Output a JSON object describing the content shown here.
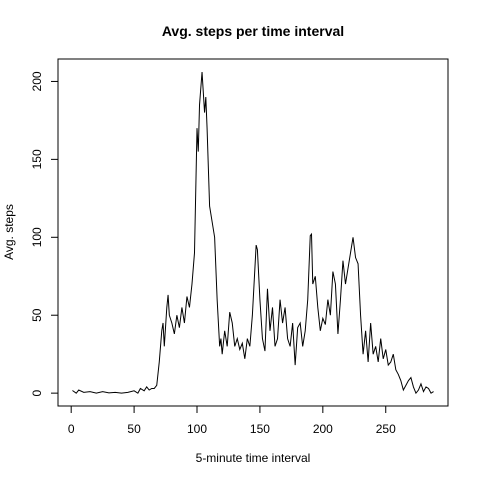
{
  "chart_data": {
    "type": "line",
    "title": "Avg. steps per time interval",
    "x_label": "5-minute time interval",
    "y_label": "Avg. steps",
    "color": "#000000",
    "x": [
      1,
      4,
      6,
      10,
      15,
      20,
      25,
      30,
      35,
      40,
      45,
      50,
      53,
      55,
      58,
      60,
      62,
      64,
      66,
      68,
      70,
      72,
      73,
      74,
      76,
      77,
      78,
      80,
      82,
      84,
      86,
      88,
      90,
      92,
      94,
      96,
      98,
      99,
      100,
      101,
      102,
      104,
      106,
      107,
      108,
      110,
      112,
      114,
      116,
      118,
      119,
      120,
      122,
      124,
      126,
      128,
      130,
      132,
      134,
      136,
      138,
      140,
      142,
      144,
      146,
      147,
      148,
      150,
      152,
      154,
      156,
      158,
      160,
      162,
      164,
      166,
      168,
      170,
      172,
      174,
      176,
      178,
      180,
      182,
      184,
      186,
      188,
      190,
      191,
      192,
      194,
      196,
      198,
      200,
      202,
      204,
      206,
      208,
      210,
      212,
      214,
      216,
      218,
      220,
      222,
      224,
      226,
      228,
      230,
      232,
      234,
      236,
      238,
      240,
      242,
      244,
      246,
      248,
      250,
      252,
      254,
      256,
      258,
      260,
      262,
      264,
      266,
      268,
      270,
      272,
      274,
      276,
      278,
      280,
      282,
      284,
      286,
      288
    ],
    "values": [
      1.7,
      0,
      2,
      0.5,
      1,
      0,
      1,
      0.2,
      0.5,
      0,
      0.5,
      1.5,
      0,
      3,
      1.5,
      4,
      2,
      3,
      3,
      5,
      20,
      40,
      45,
      30,
      55,
      63,
      50,
      45,
      38,
      50,
      42,
      55,
      45,
      62,
      55,
      70,
      90,
      130,
      170,
      155,
      185,
      206,
      180,
      190,
      170,
      120,
      110,
      100,
      60,
      30,
      35,
      25,
      40,
      30,
      52,
      45,
      30,
      35,
      28,
      32,
      22,
      35,
      30,
      50,
      80,
      95,
      92,
      60,
      35,
      27,
      67,
      40,
      55,
      30,
      35,
      60,
      45,
      55,
      35,
      30,
      45,
      18,
      42,
      45,
      30,
      40,
      60,
      101,
      102,
      70,
      75,
      55,
      40,
      48,
      44,
      60,
      50,
      78,
      70,
      38,
      60,
      85,
      70,
      80,
      90,
      100,
      87,
      83,
      50,
      25,
      40,
      20,
      45,
      25,
      30,
      20,
      35,
      22,
      28,
      18,
      20,
      25,
      15,
      12,
      8,
      2,
      5,
      8,
      10,
      4,
      0,
      2,
      6,
      1,
      4,
      3,
      0,
      1
    ],
    "xlim": [
      -10.48,
      299.48
    ],
    "ylim": [
      -8.25,
      214.4
    ],
    "xticks": [
      0,
      50,
      100,
      150,
      200,
      250
    ],
    "yticks": [
      0,
      50,
      100,
      150,
      200
    ]
  }
}
